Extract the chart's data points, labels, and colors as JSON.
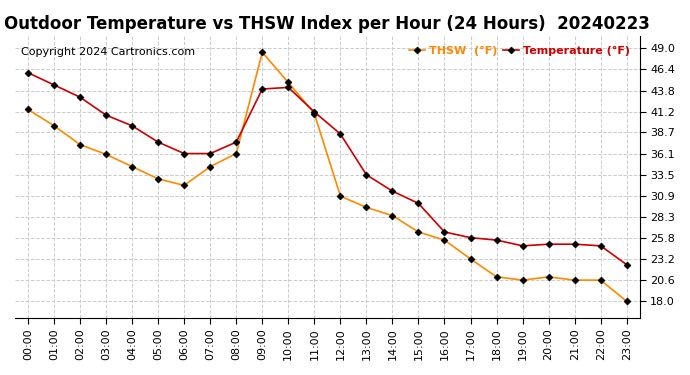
{
  "title": "Outdoor Temperature vs THSW Index per Hour (24 Hours)  20240223",
  "copyright": "Copyright 2024 Cartronics.com",
  "legend_thsw": "THSW  (°F)",
  "legend_temp": "Temperature (°F)",
  "hours": [
    "00:00",
    "01:00",
    "02:00",
    "03:00",
    "04:00",
    "05:00",
    "06:00",
    "07:00",
    "08:00",
    "09:00",
    "10:00",
    "11:00",
    "12:00",
    "13:00",
    "14:00",
    "15:00",
    "16:00",
    "17:00",
    "18:00",
    "19:00",
    "20:00",
    "21:00",
    "22:00",
    "23:00"
  ],
  "temperature": [
    46.0,
    44.5,
    43.0,
    40.8,
    39.5,
    37.5,
    36.1,
    36.1,
    37.5,
    44.0,
    44.2,
    41.2,
    38.5,
    33.5,
    31.5,
    30.0,
    26.5,
    25.8,
    25.5,
    24.8,
    25.0,
    25.0,
    24.8,
    22.5
  ],
  "thsw": [
    41.5,
    39.5,
    37.2,
    36.0,
    34.5,
    33.0,
    32.2,
    34.5,
    36.1,
    48.5,
    44.8,
    41.0,
    30.9,
    29.5,
    28.5,
    26.5,
    25.5,
    23.2,
    21.0,
    20.6,
    21.0,
    20.6,
    20.6,
    18.0
  ],
  "ylim_min": 16.0,
  "ylim_max": 50.5,
  "yticks": [
    18.0,
    20.6,
    23.2,
    25.8,
    28.3,
    30.9,
    33.5,
    36.1,
    38.7,
    41.2,
    43.8,
    46.4,
    49.0
  ],
  "temp_color": "#cc0000",
  "thsw_color": "#ff8800",
  "background_color": "#ffffff",
  "grid_color": "#cccccc",
  "title_fontsize": 12,
  "axis_fontsize": 8,
  "copyright_fontsize": 8
}
